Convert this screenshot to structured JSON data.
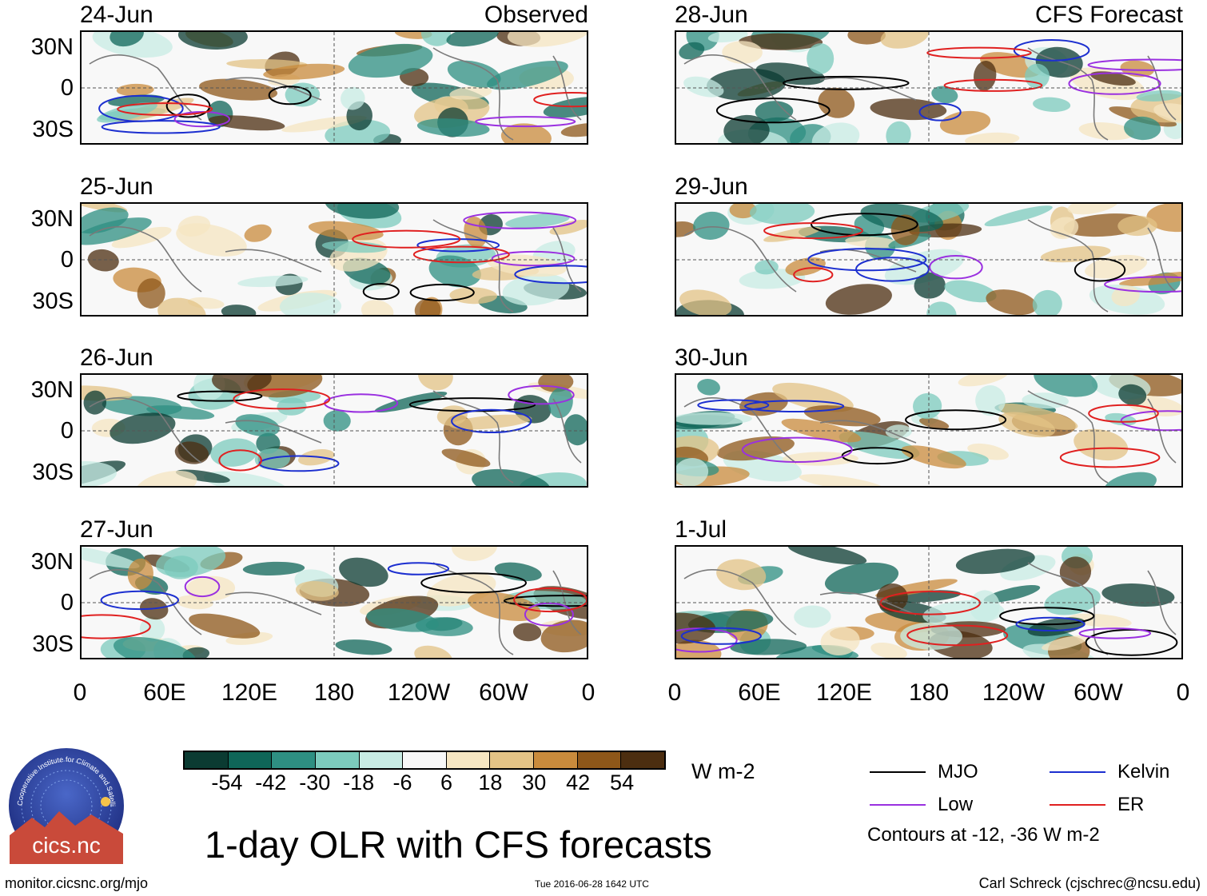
{
  "panels": [
    {
      "date": "24-Jun",
      "label": "Observed"
    },
    {
      "date": "25-Jun",
      "label": ""
    },
    {
      "date": "26-Jun",
      "label": ""
    },
    {
      "date": "27-Jun",
      "label": ""
    },
    {
      "date": "28-Jun",
      "label": "CFS Forecast"
    },
    {
      "date": "29-Jun",
      "label": ""
    },
    {
      "date": "30-Jun",
      "label": ""
    },
    {
      "date": "1-Jul",
      "label": ""
    }
  ],
  "axes": {
    "lat_ticks": [
      "30N",
      "0",
      "30S"
    ],
    "lon_ticks": [
      "0",
      "60E",
      "120E",
      "180",
      "120W",
      "60W",
      "0"
    ]
  },
  "colorbar": {
    "ticks": [
      "-54",
      "-42",
      "-30",
      "-18",
      "-6",
      "6",
      "18",
      "30",
      "42",
      "54"
    ],
    "colors": [
      "#0b3b32",
      "#0f6658",
      "#2e8f82",
      "#7ccbbd",
      "#c8ece4",
      "#f8f8f8",
      "#f6e6c2",
      "#e3c386",
      "#c98b3c",
      "#8e5719",
      "#4c2e10"
    ],
    "units": "W m-2"
  },
  "legend": {
    "items": [
      {
        "label": "MJO",
        "color": "#000000"
      },
      {
        "label": "Kelvin",
        "color": "#1c2fd0"
      },
      {
        "label": "Low",
        "color": "#9a30e0"
      },
      {
        "label": "ER",
        "color": "#e02020"
      }
    ],
    "note": "Contours at -12, -36 W m-2"
  },
  "chart_data": {
    "type": "heatmap",
    "title": "1-day OLR with CFS forecasts",
    "variable": "OLR anomaly",
    "units": "W m-2",
    "contour_levels": [
      -12,
      -36
    ],
    "lat_range": [
      "30S",
      "30N"
    ],
    "lon_range": [
      "0",
      "0"
    ],
    "observed_dates": [
      "24-Jun",
      "25-Jun",
      "26-Jun",
      "27-Jun"
    ],
    "forecast_dates": [
      "28-Jun",
      "29-Jun",
      "30-Jun",
      "1-Jul"
    ]
  },
  "footer": {
    "url": "monitor.cicsnc.org/mjo",
    "timestamp": "Tue 2016-06-28 1642 UTC",
    "credit": "Carl Schreck (cjschrec@ncsu.edu)",
    "logo_text": "cics.nc",
    "logo_ring_text": "Cooperative Institute for Climate and Satellites"
  }
}
